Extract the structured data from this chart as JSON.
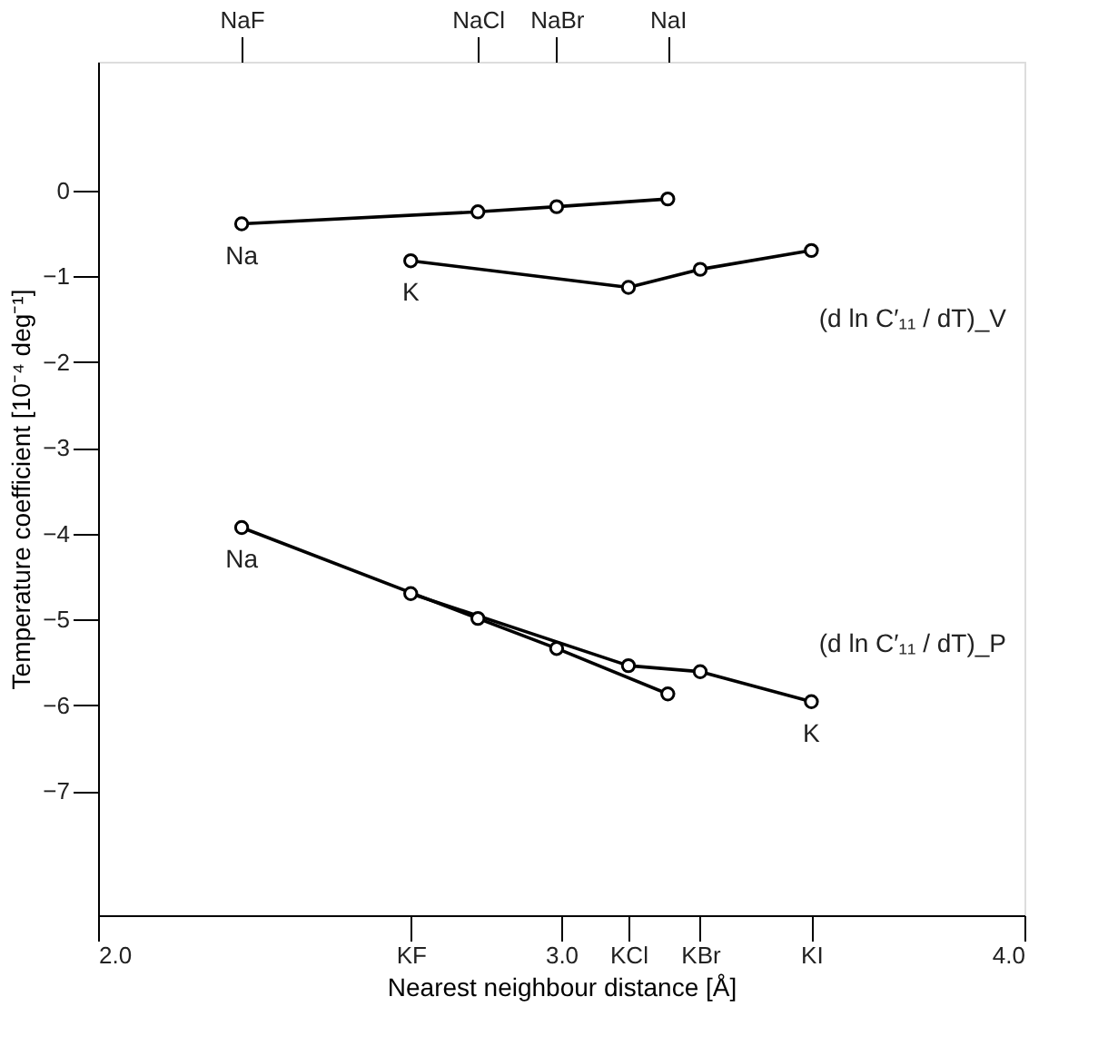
{
  "chart_data": {
    "type": "line",
    "xlabel": "Nearest neighbour distance  [Å]",
    "ylabel": "Temperature coefficient  [10⁻⁴ deg⁻¹]",
    "xlim": [
      2.0,
      4.0
    ],
    "ylim": [
      -8.45,
      1.5
    ],
    "xticks": [
      {
        "value": 2.0,
        "label": "2.0"
      },
      {
        "value": 2.675,
        "label": "KF"
      },
      {
        "value": 3.0,
        "label": "3.0"
      },
      {
        "value": 3.145,
        "label": "KCl"
      },
      {
        "value": 3.3,
        "label": "KBr"
      },
      {
        "value": 3.54,
        "label": "KI"
      },
      {
        "value": 4.0,
        "label": "4.0"
      }
    ],
    "yticks": [
      0,
      -1,
      -2,
      -3,
      -4,
      -5,
      -6,
      -7
    ],
    "marker": "circle",
    "line_style": "solid",
    "grid": false,
    "series": [
      {
        "color": "#000000",
        "x": [
          2.31,
          2.82,
          2.99,
          3.23
        ],
        "values": [
          -0.39,
          -0.25,
          -0.19,
          -0.1
        ]
      },
      {
        "color": "#000000",
        "x": [
          2.675,
          3.145,
          3.3,
          3.54
        ],
        "values": [
          -0.82,
          -1.13,
          -0.92,
          -0.7
        ]
      },
      {
        "color": "#000000",
        "x": [
          2.31,
          2.82,
          2.99,
          3.23
        ],
        "values": [
          -3.93,
          -4.99,
          -5.34,
          -5.87
        ]
      },
      {
        "color": "#000000",
        "x": [
          2.675,
          3.145,
          3.3,
          3.54
        ],
        "values": [
          -4.7,
          -5.54,
          -5.61,
          -5.96
        ]
      }
    ],
    "annotations": [
      {
        "text": "Na",
        "x": 2.31,
        "y": -0.39
      },
      {
        "text": "K",
        "x": 2.675,
        "y": -0.82
      },
      {
        "text": "NaF",
        "x": 2.31
      },
      {
        "text": "NaCl",
        "x": 2.82
      },
      {
        "text": "NaBr",
        "x": 2.99
      },
      {
        "text": "NaI",
        "x": 3.23
      },
      "(d ln C′₁₁ / dT)_V",
      {
        "text": "Na",
        "x": 2.31,
        "y": -3.93
      },
      {
        "text": "K",
        "x": 3.54,
        "y": -5.96
      },
      "(d ln C′₁₁ / dT)_P"
    ]
  }
}
